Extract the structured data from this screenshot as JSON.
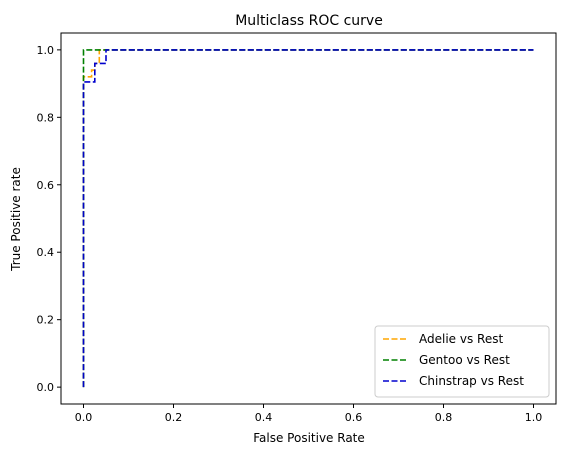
{
  "chart_data": {
    "type": "line",
    "title": "Multiclass ROC curve",
    "xlabel": "False Positive Rate",
    "ylabel": "True Positive rate",
    "xlim": [
      -0.05,
      1.05
    ],
    "ylim": [
      -0.05,
      1.05
    ],
    "xticks": [
      0.0,
      0.2,
      0.4,
      0.6,
      0.8,
      1.0
    ],
    "yticks": [
      0.0,
      0.2,
      0.4,
      0.6,
      0.8,
      1.0
    ],
    "xtick_labels": [
      "0.0",
      "0.2",
      "0.4",
      "0.6",
      "0.8",
      "1.0"
    ],
    "ytick_labels": [
      "0.0",
      "0.2",
      "0.4",
      "0.6",
      "0.8",
      "1.0"
    ],
    "grid": false,
    "legend_position": "lower-right",
    "series": [
      {
        "name": "Adelie vs Rest",
        "color": "#ffa500",
        "linestyle": "dashed",
        "x": [
          0.0,
          0.0,
          0.018,
          0.018,
          0.025,
          0.025,
          0.035,
          0.035,
          1.0
        ],
        "y": [
          0.0,
          0.92,
          0.92,
          0.94,
          0.94,
          0.96,
          0.96,
          1.0,
          1.0
        ]
      },
      {
        "name": "Gentoo vs Rest",
        "color": "#008000",
        "linestyle": "dashed",
        "x": [
          0.0,
          0.0,
          0.0,
          0.035,
          1.0
        ],
        "y": [
          0.0,
          0.92,
          1.0,
          1.0,
          1.0
        ]
      },
      {
        "name": "Chinstrap vs Rest",
        "color": "#0000cd",
        "linestyle": "dashed",
        "x": [
          0.0,
          0.0,
          0.025,
          0.025,
          0.05,
          0.05,
          1.0
        ],
        "y": [
          0.0,
          0.905,
          0.905,
          0.96,
          0.96,
          1.0,
          1.0
        ]
      }
    ]
  }
}
